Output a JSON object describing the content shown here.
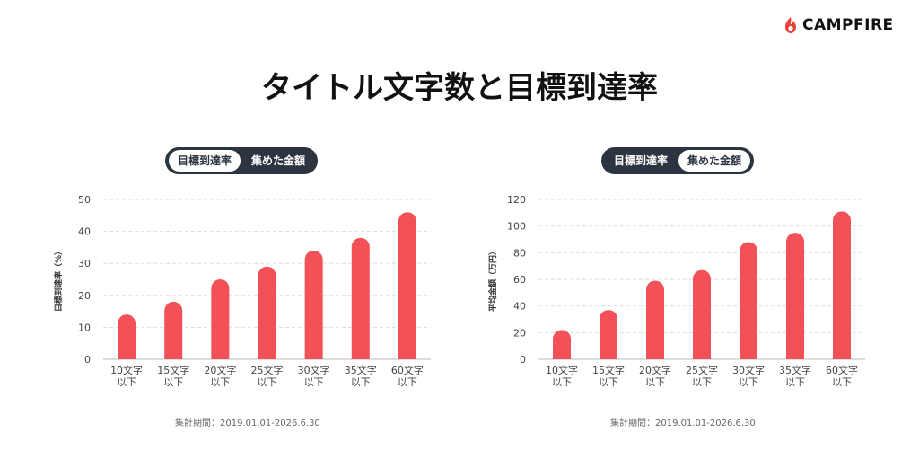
{
  "header": {
    "logo_text": "CAMPFIRE",
    "title": "タイトル文字数と目標到達率"
  },
  "colors": {
    "bar": "#f25157",
    "toggle_bg": "#2c3441",
    "grid": "#dddddd"
  },
  "panels": [
    {
      "toggle": [
        "目標到達率",
        "集めた金額"
      ],
      "active": 0,
      "period": "集計期間：2019.01.01-2026.6.30"
    },
    {
      "toggle": [
        "目標到達率",
        "集めた金額"
      ],
      "active": 1,
      "period": "集計期間：2019.01.01-2026.6.30"
    }
  ],
  "chart_data": [
    {
      "type": "bar",
      "title": "",
      "xlabel": "",
      "ylabel": "目標到達率（%）",
      "categories": [
        [
          "10文字",
          "以下"
        ],
        [
          "15文字",
          "以下"
        ],
        [
          "20文字",
          "以下"
        ],
        [
          "25文字",
          "以下"
        ],
        [
          "30文字",
          "以下"
        ],
        [
          "35文字",
          "以下"
        ],
        [
          "60文字",
          "以下"
        ]
      ],
      "values": [
        14,
        18,
        25,
        29,
        34,
        38,
        46
      ],
      "ylim": [
        0,
        50
      ],
      "yticks": [
        0,
        10,
        20,
        30,
        40,
        50
      ],
      "grid": true
    },
    {
      "type": "bar",
      "title": "",
      "xlabel": "",
      "ylabel": "平均金額（万円）",
      "categories": [
        [
          "10文字",
          "以下"
        ],
        [
          "15文字",
          "以下"
        ],
        [
          "20文字",
          "以下"
        ],
        [
          "25文字",
          "以下"
        ],
        [
          "30文字",
          "以下"
        ],
        [
          "35文字",
          "以下"
        ],
        [
          "60文字",
          "以下"
        ]
      ],
      "values": [
        22,
        37,
        59,
        67,
        88,
        95,
        111
      ],
      "ylim": [
        0,
        120
      ],
      "yticks": [
        0,
        20,
        40,
        60,
        80,
        100,
        120
      ],
      "grid": true
    }
  ]
}
